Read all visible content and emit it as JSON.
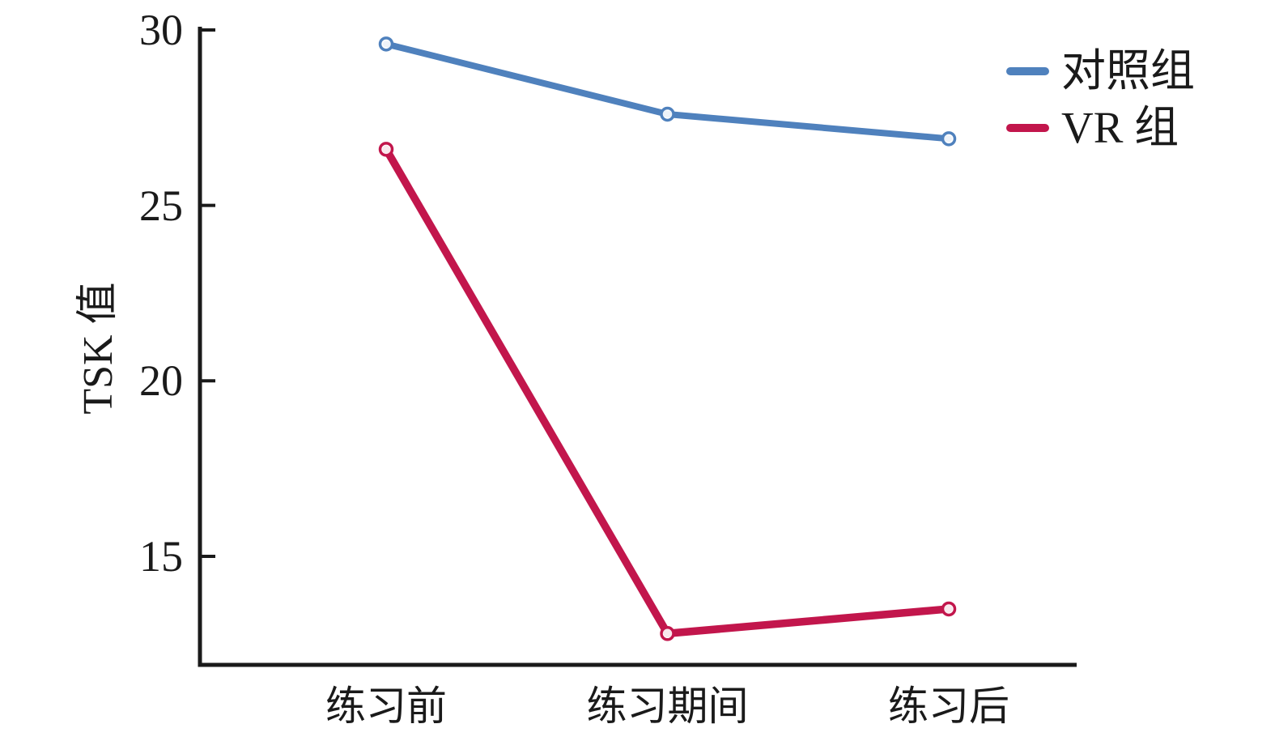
{
  "chart_data": {
    "type": "line",
    "title": "",
    "xlabel": "",
    "ylabel": "TSK 值",
    "categories": [
      "练习前",
      "练习期间",
      "练习后"
    ],
    "series": [
      {
        "name": "对照组",
        "color": "#4f81bd",
        "values": [
          29.6,
          27.6,
          26.9
        ]
      },
      {
        "name": "VR 组",
        "color": "#c2164c",
        "values": [
          26.6,
          12.8,
          13.5
        ]
      }
    ],
    "yticks": [
      30,
      25,
      20,
      15
    ],
    "ylim": [
      11.9,
      30
    ],
    "grid": false,
    "legend_position": "top-right",
    "marker": "open-circle",
    "axis_color": "#1a1a1a"
  }
}
